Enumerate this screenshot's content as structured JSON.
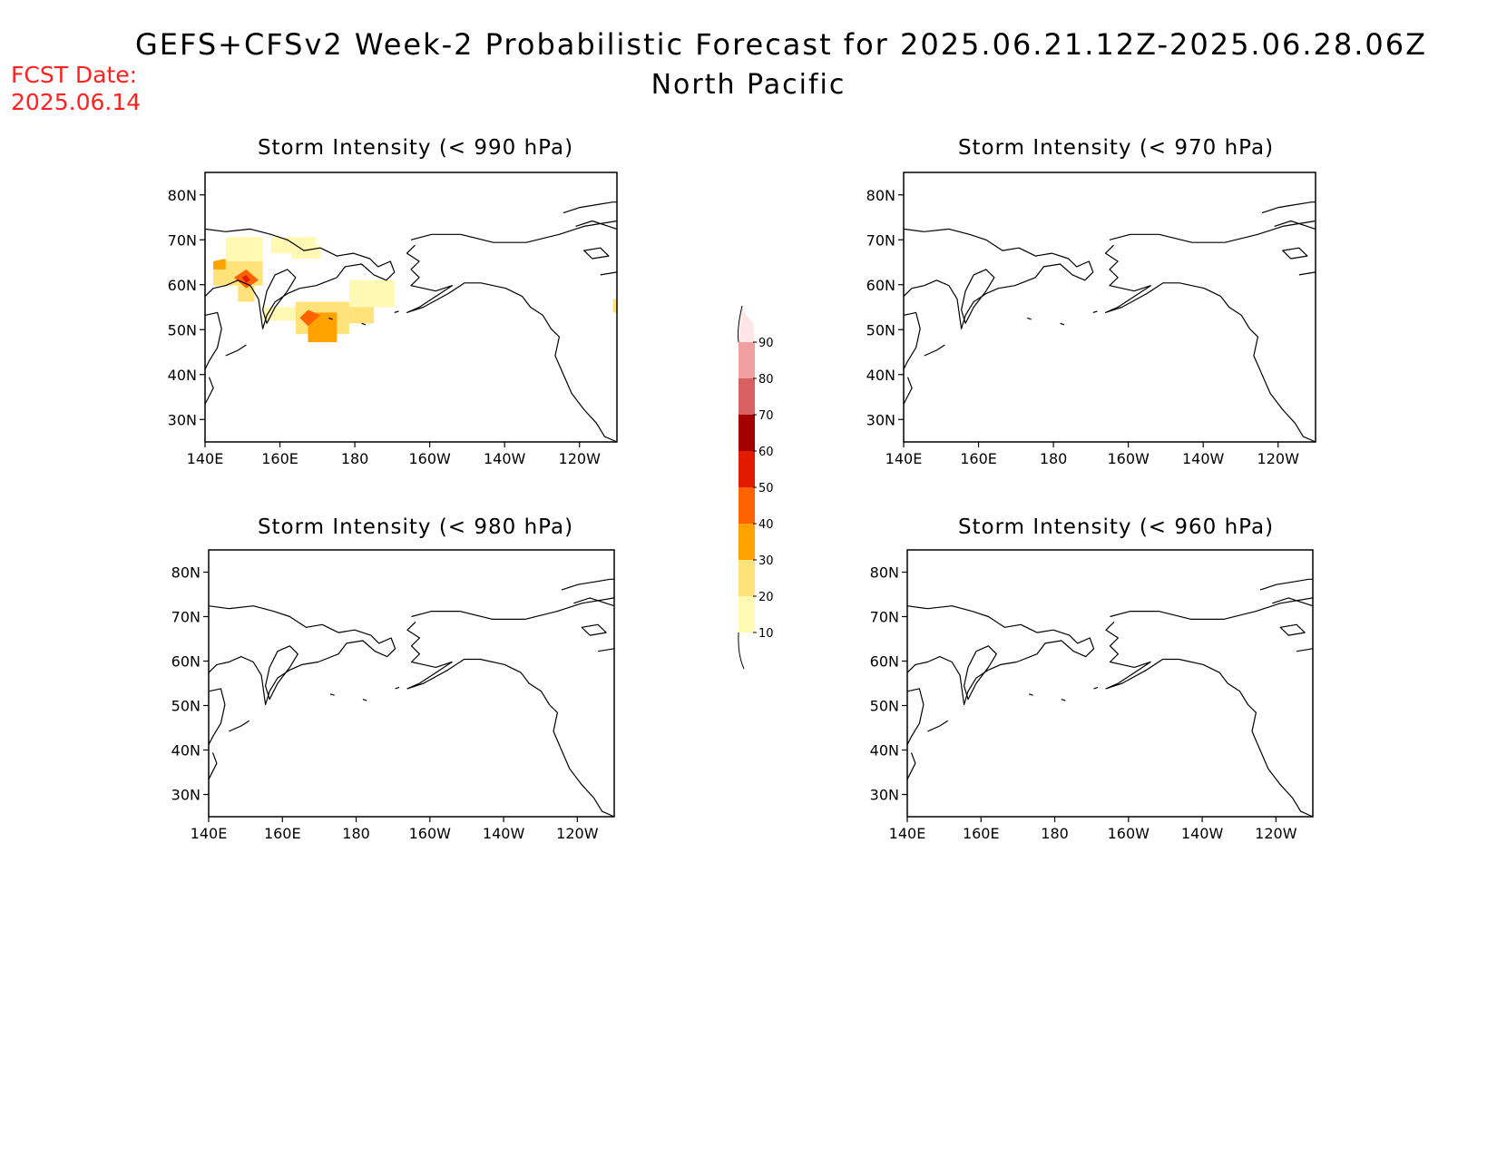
{
  "header": {
    "title": "GEFS+CFSv2 Week-2 Probabilistic Forecast for 2025.06.21.12Z-2025.06.28.06Z",
    "subtitle": "North Pacific"
  },
  "forecast_date": {
    "label": "FCST Date:",
    "value": "2025.06.14"
  },
  "axes": {
    "lat_ticks": [
      "80N",
      "70N",
      "60N",
      "50N",
      "40N",
      "30N"
    ],
    "lon_ticks": [
      "140E",
      "160E",
      "180",
      "160W",
      "140W",
      "120W"
    ]
  },
  "panels": [
    {
      "id": "p990",
      "title": "Storm Intensity (< 990 hPa)",
      "has_shading": true
    },
    {
      "id": "p970",
      "title": "Storm Intensity (< 970 hPa)",
      "has_shading": false
    },
    {
      "id": "p980",
      "title": "Storm Intensity (< 980 hPa)",
      "has_shading": false
    },
    {
      "id": "p960",
      "title": "Storm Intensity (< 960 hPa)",
      "has_shading": false
    }
  ],
  "colorbar": {
    "levels": [
      "10",
      "20",
      "30",
      "40",
      "50",
      "60",
      "70",
      "80",
      "90"
    ],
    "colors": [
      "#fff9b4",
      "#ffe37a",
      "#ffa200",
      "#ff6200",
      "#e31a00",
      "#a50000",
      "#d96060",
      "#f0a0a0",
      "#ffe5e5"
    ]
  },
  "colors": {
    "fcst_date": "#ff2020",
    "land_outline": "#000000"
  }
}
